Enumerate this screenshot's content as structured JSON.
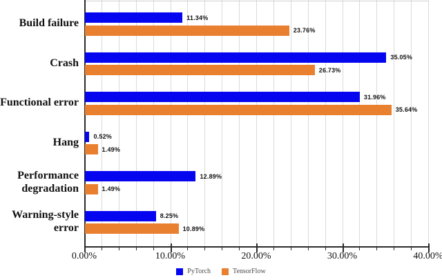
{
  "chart_data": {
    "type": "bar",
    "orientation": "horizontal",
    "categories": [
      "Build failure",
      "Crash",
      "Functional error",
      "Hang",
      "Performance\ndegradation",
      "Warning-style\nerror"
    ],
    "series": [
      {
        "name": "PyTorch",
        "color": "#0505f0",
        "values": [
          11.34,
          35.05,
          31.96,
          0.52,
          12.89,
          8.25
        ],
        "value_labels": [
          "11.34%",
          "35.05%",
          "31.96%",
          "0.52%",
          "12.89%",
          "8.25%"
        ]
      },
      {
        "name": "TensorFlow",
        "color": "#e8802f",
        "values": [
          23.76,
          26.73,
          35.64,
          1.49,
          1.49,
          10.89
        ],
        "value_labels": [
          "23.76%",
          "26.73%",
          "35.64%",
          "1.49%",
          "1.49%",
          "10.89%"
        ]
      }
    ],
    "title": "",
    "xlabel": "",
    "ylabel": "",
    "xlim": [
      0,
      40
    ],
    "x_tick_labels": [
      "0.00%",
      "10.00%",
      "20.00%",
      "30.00%",
      "40.00%"
    ],
    "x_major_tick_step": 10,
    "x_minor_tick_step": 2,
    "grid": "vertical minor gridlines on",
    "legend_position": "bottom-center",
    "axis_color": "#2a2a2a",
    "gridline_color": "#dadada",
    "value_label_color": "#111111"
  }
}
